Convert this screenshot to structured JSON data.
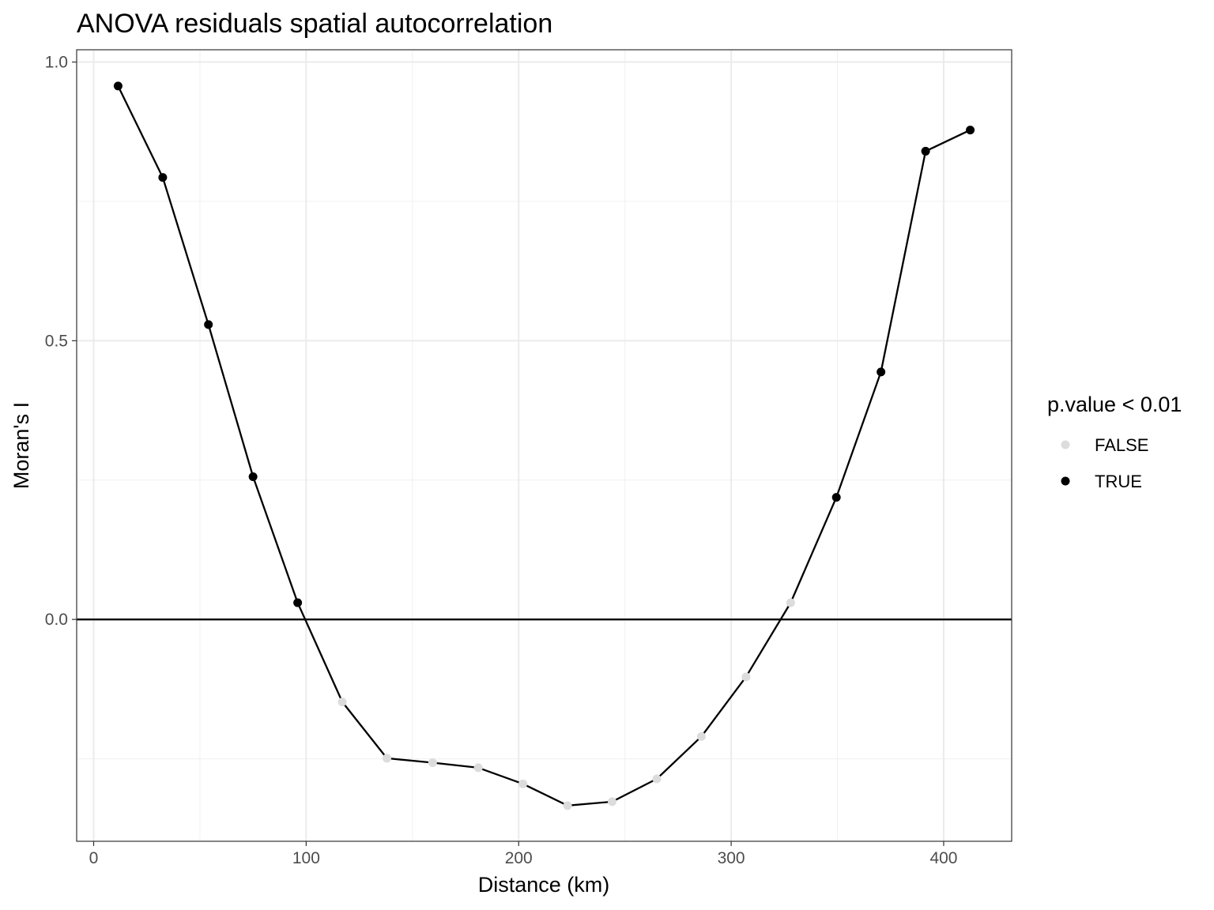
{
  "chart_data": {
    "type": "line",
    "title": "ANOVA residuals spatial autocorrelation",
    "xlabel": "Distance (km)",
    "ylabel": "Moran's I",
    "xlim": [
      -8,
      432
    ],
    "ylim": [
      -0.398,
      1.022
    ],
    "x_ticks": [
      0,
      100,
      200,
      300,
      400
    ],
    "x_tick_labels": [
      "0",
      "100",
      "200",
      "300",
      "400"
    ],
    "x_minor_ticks": [
      50,
      150,
      250,
      350
    ],
    "y_ticks": [
      0.0,
      0.5,
      1.0
    ],
    "y_tick_labels": [
      "0.0",
      "0.5",
      "1.0"
    ],
    "y_minor_ticks": [
      -0.25,
      0.25,
      0.75
    ],
    "reference_line_y": 0,
    "grid": true,
    "legend": {
      "title": "p.value < 0.01",
      "position": "right",
      "entries": [
        {
          "label": "FALSE",
          "color": "#dcdcdc"
        },
        {
          "label": "TRUE",
          "color": "#000000"
        }
      ]
    },
    "series": [
      {
        "line_color": "#000000",
        "points": [
          {
            "x": 11.5,
            "y": 0.957,
            "significant": true
          },
          {
            "x": 32.5,
            "y": 0.793,
            "significant": true
          },
          {
            "x": 54,
            "y": 0.529,
            "significant": true
          },
          {
            "x": 75,
            "y": 0.256,
            "significant": true
          },
          {
            "x": 96,
            "y": 0.03,
            "significant": true
          },
          {
            "x": 117,
            "y": -0.148,
            "significant": false
          },
          {
            "x": 138,
            "y": -0.249,
            "significant": false
          },
          {
            "x": 159.5,
            "y": -0.257,
            "significant": false
          },
          {
            "x": 181,
            "y": -0.266,
            "significant": false
          },
          {
            "x": 202,
            "y": -0.295,
            "significant": false
          },
          {
            "x": 223,
            "y": -0.334,
            "significant": false
          },
          {
            "x": 244,
            "y": -0.327,
            "significant": false
          },
          {
            "x": 265,
            "y": -0.286,
            "significant": false
          },
          {
            "x": 286,
            "y": -0.21,
            "significant": false
          },
          {
            "x": 307,
            "y": -0.103,
            "significant": false
          },
          {
            "x": 328,
            "y": 0.03,
            "significant": false
          },
          {
            "x": 349.5,
            "y": 0.219,
            "significant": true
          },
          {
            "x": 370.5,
            "y": 0.444,
            "significant": true
          },
          {
            "x": 391.5,
            "y": 0.84,
            "significant": true
          },
          {
            "x": 412.5,
            "y": 0.878,
            "significant": true
          }
        ]
      }
    ]
  }
}
